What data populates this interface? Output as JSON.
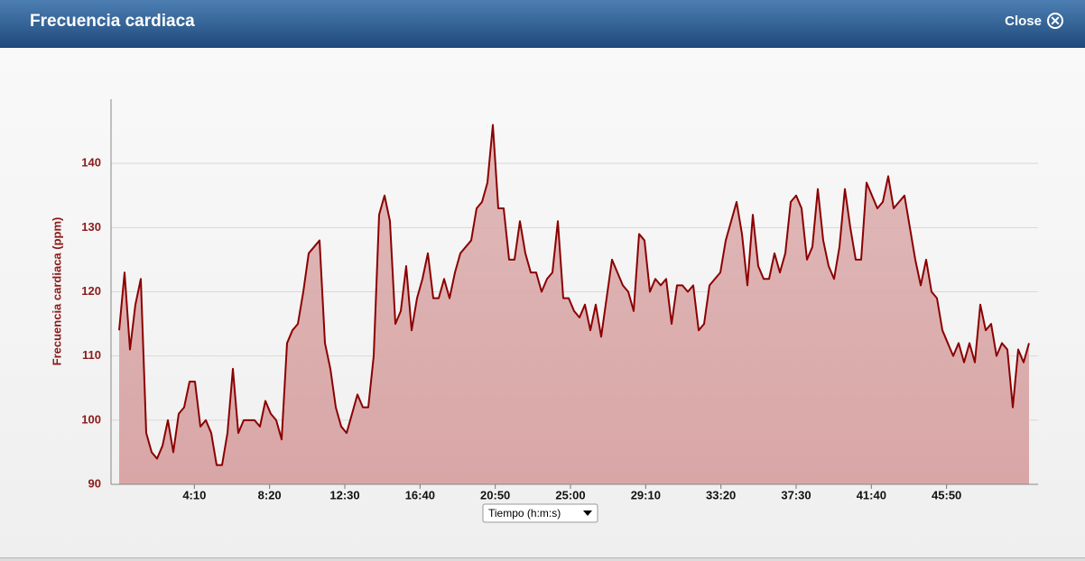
{
  "header": {
    "title": "Frecuencia cardiaca",
    "close": "Close"
  },
  "chart_data": {
    "type": "area",
    "y_label": "Frecuencia cardiaca (ppm)",
    "x_selector": "Tiempo (h:m:s)",
    "color": "#8b0000",
    "fill_color": "#d9a6a6",
    "grid": true,
    "ylim": [
      90,
      150
    ],
    "yticks": [
      90,
      100,
      110,
      120,
      130,
      140
    ],
    "xlim": [
      -27,
      3054
    ],
    "xticks": [
      {
        "value": 250,
        "label": "4:10"
      },
      {
        "value": 500,
        "label": "8:20"
      },
      {
        "value": 750,
        "label": "12:30"
      },
      {
        "value": 1000,
        "label": "16:40"
      },
      {
        "value": 1250,
        "label": "20:50"
      },
      {
        "value": 1500,
        "label": "25:00"
      },
      {
        "value": 1750,
        "label": "29:10"
      },
      {
        "value": 2000,
        "label": "33:20"
      },
      {
        "value": 2250,
        "label": "37:30"
      },
      {
        "value": 2500,
        "label": "41:40"
      },
      {
        "value": 2750,
        "label": "45:50"
      }
    ],
    "x": [
      0,
      18,
      36,
      54,
      72,
      90,
      108,
      126,
      144,
      162,
      180,
      198,
      216,
      234,
      252,
      270,
      288,
      306,
      324,
      342,
      360,
      378,
      396,
      414,
      432,
      450,
      468,
      486,
      504,
      522,
      540,
      558,
      576,
      594,
      612,
      630,
      648,
      666,
      684,
      702,
      720,
      738,
      756,
      774,
      792,
      810,
      828,
      846,
      864,
      882,
      900,
      918,
      936,
      954,
      972,
      990,
      1008,
      1026,
      1044,
      1062,
      1080,
      1098,
      1116,
      1134,
      1152,
      1170,
      1188,
      1206,
      1224,
      1242,
      1260,
      1278,
      1296,
      1314,
      1332,
      1350,
      1368,
      1386,
      1404,
      1422,
      1440,
      1458,
      1476,
      1494,
      1512,
      1530,
      1548,
      1566,
      1584,
      1602,
      1620,
      1638,
      1656,
      1674,
      1692,
      1710,
      1728,
      1746,
      1764,
      1782,
      1800,
      1818,
      1836,
      1854,
      1872,
      1890,
      1908,
      1926,
      1944,
      1962,
      1980,
      1998,
      2016,
      2034,
      2052,
      2070,
      2088,
      2106,
      2124,
      2142,
      2160,
      2178,
      2196,
      2214,
      2232,
      2250,
      2268,
      2286,
      2304,
      2322,
      2340,
      2358,
      2376,
      2394,
      2412,
      2430,
      2448,
      2466,
      2484,
      2502,
      2520,
      2538,
      2556,
      2574,
      2592,
      2610,
      2628,
      2646,
      2664,
      2682,
      2700,
      2718,
      2736,
      2754,
      2772,
      2790,
      2808,
      2826,
      2844,
      2862,
      2880,
      2898,
      2916,
      2934,
      2952,
      2970,
      2988,
      3006,
      3024
    ],
    "values": [
      114,
      123,
      111,
      118,
      122,
      98,
      95,
      94,
      96,
      100,
      95,
      101,
      102,
      106,
      106,
      99,
      100,
      98,
      93,
      93,
      98,
      108,
      98,
      100,
      100,
      100,
      99,
      103,
      101,
      100,
      97,
      112,
      114,
      115,
      120,
      126,
      127,
      128,
      112,
      108,
      102,
      99,
      98,
      101,
      104,
      102,
      102,
      110,
      132,
      135,
      131,
      115,
      117,
      124,
      114,
      119,
      122,
      126,
      119,
      119,
      122,
      119,
      123,
      126,
      127,
      128,
      133,
      134,
      137,
      146,
      133,
      133,
      125,
      125,
      131,
      126,
      123,
      123,
      120,
      122,
      123,
      131,
      119,
      119,
      117,
      116,
      118,
      114,
      118,
      113,
      119,
      125,
      123,
      121,
      120,
      117,
      129,
      128,
      120,
      122,
      121,
      122,
      115,
      121,
      121,
      120,
      121,
      114,
      115,
      121,
      122,
      123,
      128,
      131,
      134,
      129,
      121,
      132,
      124,
      122,
      122,
      126,
      123,
      126,
      134,
      135,
      133,
      125,
      127,
      136,
      128,
      124,
      122,
      127,
      136,
      130,
      125,
      125,
      137,
      135,
      133,
      134,
      138,
      133,
      134,
      135,
      130,
      125,
      121,
      125,
      120,
      119,
      114,
      112,
      110,
      112,
      109,
      112,
      109,
      118,
      114,
      115,
      110,
      112,
      111,
      102,
      111,
      109,
      112
    ]
  }
}
